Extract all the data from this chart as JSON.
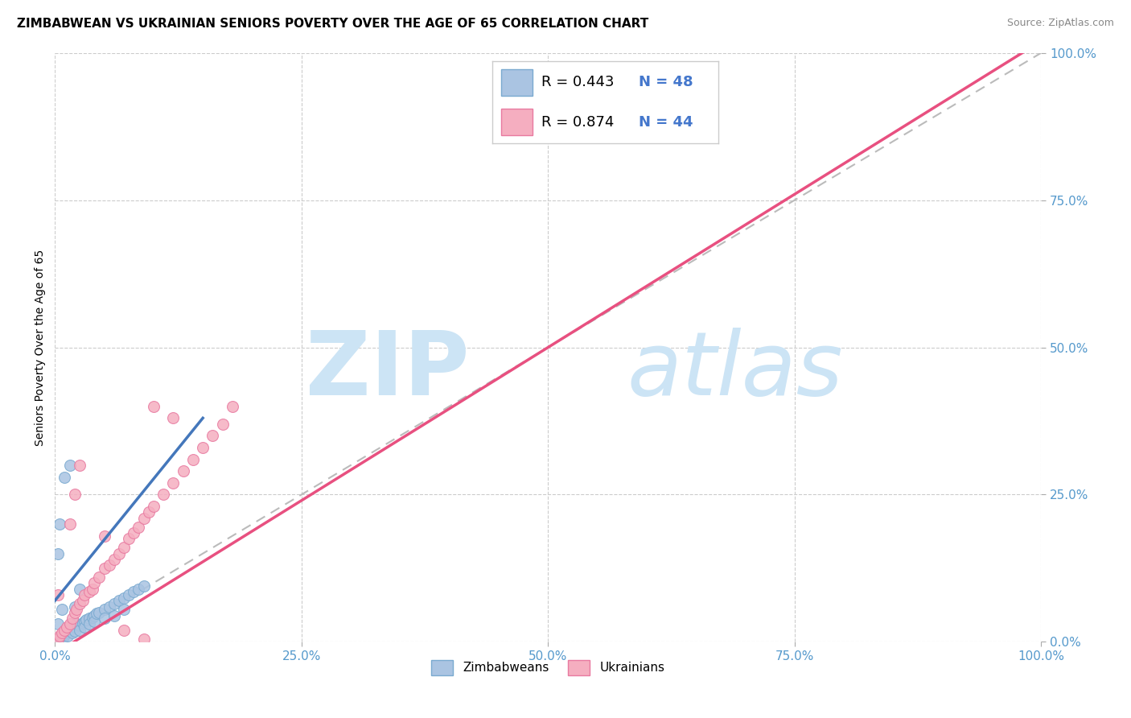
{
  "title": "ZIMBABWEAN VS UKRAINIAN SENIORS POVERTY OVER THE AGE OF 65 CORRELATION CHART",
  "source": "Source: ZipAtlas.com",
  "ylabel": "Seniors Poverty Over the Age of 65",
  "xlim": [
    0,
    1.0
  ],
  "ylim": [
    0,
    1.0
  ],
  "xticks": [
    0.0,
    0.25,
    0.5,
    0.75,
    1.0
  ],
  "yticks": [
    0.0,
    0.25,
    0.5,
    0.75,
    1.0
  ],
  "xticklabels": [
    "0.0%",
    "25.0%",
    "50.0%",
    "75.0%",
    "100.0%"
  ],
  "yticklabels_right": [
    "100.0%",
    "75.0%",
    "50.0%",
    "25.0%",
    "0.0%"
  ],
  "zimbabwe_color": "#aac4e2",
  "ukraine_color": "#f5aec0",
  "zimbabwe_edge_color": "#7aaad0",
  "ukraine_edge_color": "#e87aa0",
  "zimbabwe_line_color": "#4477bb",
  "ukraine_line_color": "#e85080",
  "diagonal_color": "#bbbbbb",
  "watermark_zip_color": "#cce4f5",
  "watermark_atlas_color": "#cce4f5",
  "tick_color": "#5599cc",
  "legend_R_color": "#000000",
  "legend_N_color": "#4477cc",
  "title_fontsize": 11,
  "axis_label_fontsize": 10,
  "tick_fontsize": 11,
  "legend_fontsize": 13,
  "source_fontsize": 9,
  "zimbabwe_scatter": [
    [
      0.003,
      0.005
    ],
    [
      0.005,
      0.008
    ],
    [
      0.007,
      0.01
    ],
    [
      0.008,
      0.006
    ],
    [
      0.01,
      0.012
    ],
    [
      0.01,
      0.018
    ],
    [
      0.012,
      0.015
    ],
    [
      0.013,
      0.01
    ],
    [
      0.015,
      0.02
    ],
    [
      0.015,
      0.025
    ],
    [
      0.018,
      0.022
    ],
    [
      0.018,
      0.015
    ],
    [
      0.02,
      0.025
    ],
    [
      0.02,
      0.018
    ],
    [
      0.022,
      0.03
    ],
    [
      0.025,
      0.028
    ],
    [
      0.025,
      0.02
    ],
    [
      0.028,
      0.032
    ],
    [
      0.03,
      0.035
    ],
    [
      0.03,
      0.025
    ],
    [
      0.032,
      0.038
    ],
    [
      0.035,
      0.04
    ],
    [
      0.035,
      0.03
    ],
    [
      0.038,
      0.042
    ],
    [
      0.04,
      0.045
    ],
    [
      0.04,
      0.035
    ],
    [
      0.042,
      0.048
    ],
    [
      0.045,
      0.05
    ],
    [
      0.05,
      0.055
    ],
    [
      0.05,
      0.04
    ],
    [
      0.055,
      0.06
    ],
    [
      0.06,
      0.065
    ],
    [
      0.06,
      0.045
    ],
    [
      0.065,
      0.07
    ],
    [
      0.07,
      0.075
    ],
    [
      0.07,
      0.055
    ],
    [
      0.075,
      0.08
    ],
    [
      0.08,
      0.085
    ],
    [
      0.085,
      0.09
    ],
    [
      0.09,
      0.095
    ],
    [
      0.003,
      0.15
    ],
    [
      0.005,
      0.2
    ],
    [
      0.01,
      0.28
    ],
    [
      0.015,
      0.3
    ],
    [
      0.003,
      0.03
    ],
    [
      0.007,
      0.055
    ],
    [
      0.02,
      0.06
    ],
    [
      0.025,
      0.09
    ]
  ],
  "ukraine_scatter": [
    [
      0.003,
      0.005
    ],
    [
      0.005,
      0.01
    ],
    [
      0.007,
      0.015
    ],
    [
      0.01,
      0.02
    ],
    [
      0.012,
      0.025
    ],
    [
      0.015,
      0.03
    ],
    [
      0.018,
      0.04
    ],
    [
      0.02,
      0.05
    ],
    [
      0.022,
      0.055
    ],
    [
      0.025,
      0.065
    ],
    [
      0.028,
      0.07
    ],
    [
      0.03,
      0.08
    ],
    [
      0.035,
      0.085
    ],
    [
      0.038,
      0.09
    ],
    [
      0.04,
      0.1
    ],
    [
      0.045,
      0.11
    ],
    [
      0.05,
      0.125
    ],
    [
      0.055,
      0.13
    ],
    [
      0.06,
      0.14
    ],
    [
      0.065,
      0.15
    ],
    [
      0.07,
      0.16
    ],
    [
      0.075,
      0.175
    ],
    [
      0.08,
      0.185
    ],
    [
      0.085,
      0.195
    ],
    [
      0.09,
      0.21
    ],
    [
      0.095,
      0.22
    ],
    [
      0.1,
      0.23
    ],
    [
      0.11,
      0.25
    ],
    [
      0.12,
      0.27
    ],
    [
      0.13,
      0.29
    ],
    [
      0.14,
      0.31
    ],
    [
      0.15,
      0.33
    ],
    [
      0.16,
      0.35
    ],
    [
      0.17,
      0.37
    ],
    [
      0.18,
      0.4
    ],
    [
      0.003,
      0.08
    ],
    [
      0.015,
      0.2
    ],
    [
      0.02,
      0.25
    ],
    [
      0.025,
      0.3
    ],
    [
      0.1,
      0.4
    ],
    [
      0.12,
      0.38
    ],
    [
      0.05,
      0.18
    ],
    [
      0.07,
      0.02
    ],
    [
      0.09,
      0.005
    ]
  ],
  "zim_line_x": [
    0.0,
    0.15
  ],
  "ukr_line_x": [
    0.0,
    1.0
  ],
  "zim_line_y": [
    0.07,
    0.38
  ],
  "ukr_line_y": [
    -0.02,
    1.02
  ]
}
